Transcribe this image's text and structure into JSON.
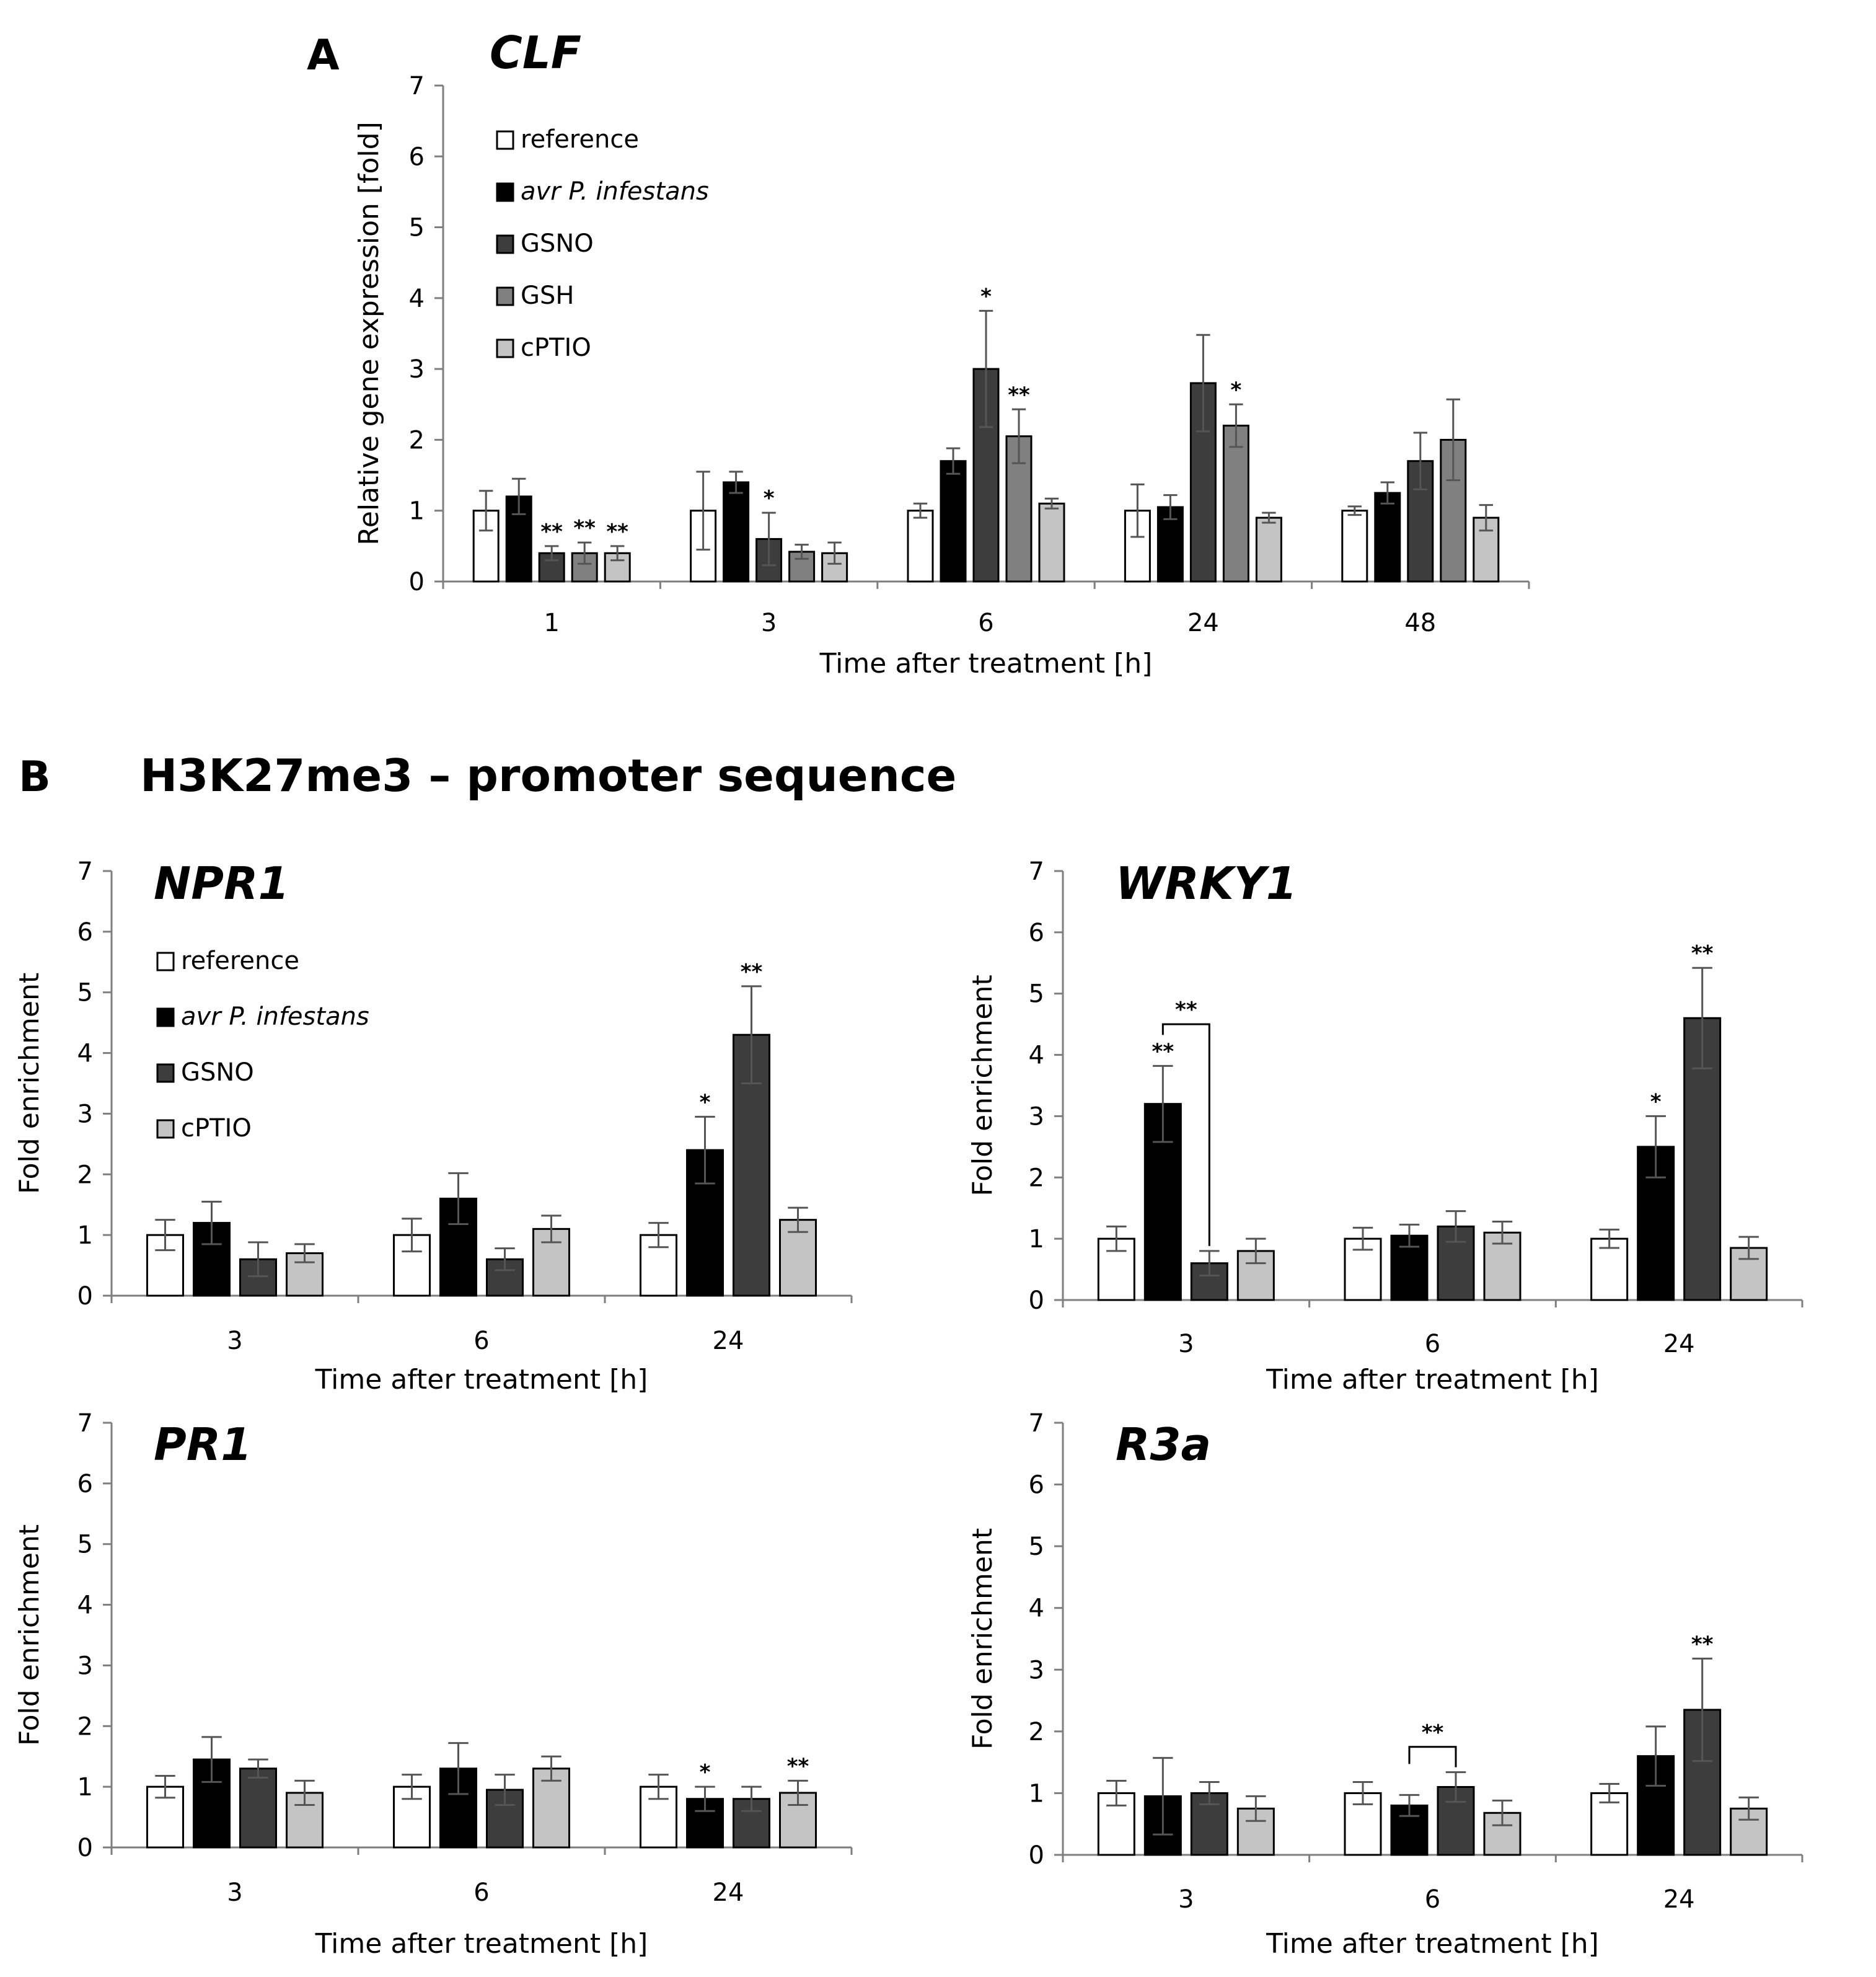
{
  "figure": {
    "panel_a_letter": "A",
    "panel_b_letter": "B",
    "panel_b_title": "H3K27me3 – promoter sequence"
  },
  "series_colors": {
    "reference": "#ffffff",
    "avr": "#000000",
    "GSNO": "#3d3d3d",
    "GSH": "#808080",
    "cPTIO": "#c4c4c4"
  },
  "chart_data": [
    {
      "id": "A",
      "type": "bar",
      "title": "CLF",
      "xlabel": "Time after treatment [h]",
      "ylabel": "Relative gene expression [fold]",
      "ylim": [
        0,
        7
      ],
      "yticks": [
        "0",
        "1",
        "2",
        "3",
        "4",
        "5",
        "6",
        "7"
      ],
      "categories": [
        "1",
        "3",
        "6",
        "24",
        "48"
      ],
      "series": [
        {
          "name": "reference",
          "color": "#ffffff",
          "values": [
            1.0,
            1.0,
            1.0,
            1.0,
            1.0
          ],
          "errors": [
            0.28,
            0.55,
            0.1,
            0.37,
            0.06
          ]
        },
        {
          "name": "avr P. infestans",
          "italic": true,
          "color": "#000000",
          "values": [
            1.2,
            1.4,
            1.7,
            1.05,
            1.25
          ],
          "errors": [
            0.25,
            0.15,
            0.18,
            0.17,
            0.15
          ]
        },
        {
          "name": "GSNO",
          "color": "#3d3d3d",
          "values": [
            0.4,
            0.6,
            3.0,
            2.8,
            1.7
          ],
          "errors": [
            0.1,
            0.37,
            0.82,
            0.68,
            0.4
          ]
        },
        {
          "name": "GSH",
          "color": "#808080",
          "values": [
            0.4,
            0.42,
            2.05,
            2.2,
            2.0
          ],
          "errors": [
            0.15,
            0.1,
            0.38,
            0.3,
            0.57
          ]
        },
        {
          "name": "cPTIO",
          "color": "#c4c4c4",
          "values": [
            0.4,
            0.4,
            1.1,
            0.9,
            0.9
          ],
          "errors": [
            0.1,
            0.15,
            0.07,
            0.07,
            0.18
          ]
        }
      ],
      "significance": [
        {
          "category": 0,
          "series": 2,
          "text": "**"
        },
        {
          "category": 0,
          "series": 3,
          "text": "**"
        },
        {
          "category": 0,
          "series": 4,
          "text": "**"
        },
        {
          "category": 1,
          "series": 2,
          "text": "*"
        },
        {
          "category": 2,
          "series": 2,
          "text": "*"
        },
        {
          "category": 2,
          "series": 3,
          "text": "**"
        },
        {
          "category": 3,
          "series": 3,
          "text": "*"
        }
      ],
      "brackets": [],
      "legend": "top-left"
    },
    {
      "id": "B-NPR1",
      "type": "bar",
      "title": "NPR1",
      "xlabel": "Time after treatment [h]",
      "ylabel": "Fold enrichment",
      "ylim": [
        0,
        7
      ],
      "yticks": [
        "0",
        "1",
        "2",
        "3",
        "4",
        "5",
        "6",
        "7"
      ],
      "categories": [
        "3",
        "6",
        "24"
      ],
      "series": [
        {
          "name": "reference",
          "color": "#ffffff",
          "values": [
            1.0,
            1.0,
            1.0
          ],
          "errors": [
            0.25,
            0.27,
            0.2
          ]
        },
        {
          "name": "avr P. infestans",
          "italic": true,
          "color": "#000000",
          "values": [
            1.2,
            1.6,
            2.4
          ],
          "errors": [
            0.35,
            0.42,
            0.55
          ]
        },
        {
          "name": "GSNO",
          "color": "#3d3d3d",
          "values": [
            0.6,
            0.6,
            4.3
          ],
          "errors": [
            0.28,
            0.18,
            0.8
          ]
        },
        {
          "name": "cPTIO",
          "color": "#c4c4c4",
          "values": [
            0.7,
            1.1,
            1.25
          ],
          "errors": [
            0.15,
            0.22,
            0.2
          ]
        }
      ],
      "significance": [
        {
          "category": 2,
          "series": 1,
          "text": "*"
        },
        {
          "category": 2,
          "series": 2,
          "text": "**"
        }
      ],
      "brackets": [],
      "legend": "top-left"
    },
    {
      "id": "B-WRKY1",
      "type": "bar",
      "title": "WRKY1",
      "xlabel": "Time after treatment [h]",
      "ylabel": "Fold enrichment",
      "ylim": [
        0,
        7
      ],
      "yticks": [
        "0",
        "1",
        "2",
        "3",
        "4",
        "5",
        "6",
        "7"
      ],
      "categories": [
        "3",
        "6",
        "24"
      ],
      "series": [
        {
          "name": "reference",
          "color": "#ffffff",
          "values": [
            1.0,
            1.0,
            1.0
          ],
          "errors": [
            0.2,
            0.18,
            0.15
          ]
        },
        {
          "name": "avr P. infestans",
          "italic": true,
          "color": "#000000",
          "values": [
            3.2,
            1.05,
            2.5
          ],
          "errors": [
            0.62,
            0.18,
            0.5
          ]
        },
        {
          "name": "GSNO",
          "color": "#3d3d3d",
          "values": [
            0.6,
            1.2,
            4.6
          ],
          "errors": [
            0.2,
            0.25,
            0.82
          ]
        },
        {
          "name": "cPTIO",
          "color": "#c4c4c4",
          "values": [
            0.8,
            1.1,
            0.85
          ],
          "errors": [
            0.2,
            0.18,
            0.18
          ]
        }
      ],
      "significance": [
        {
          "category": 0,
          "series": 1,
          "text": "**"
        },
        {
          "category": 2,
          "series": 1,
          "text": "*"
        },
        {
          "category": 2,
          "series": 2,
          "text": "**"
        }
      ],
      "brackets": [
        {
          "category": 0,
          "from": 1,
          "to": 2,
          "level": 4.5,
          "text": "**"
        }
      ]
    },
    {
      "id": "B-PR1",
      "type": "bar",
      "title": "PR1",
      "xlabel": "Time after treatment [h]",
      "ylabel": "Fold enrichment",
      "ylim": [
        0,
        7
      ],
      "yticks": [
        "0",
        "1",
        "2",
        "3",
        "4",
        "5",
        "6",
        "7"
      ],
      "categories": [
        "3",
        "6",
        "24"
      ],
      "series": [
        {
          "name": "reference",
          "color": "#ffffff",
          "values": [
            1.0,
            1.0,
            1.0
          ],
          "errors": [
            0.18,
            0.2,
            0.2
          ]
        },
        {
          "name": "avr P. infestans",
          "italic": true,
          "color": "#000000",
          "values": [
            1.45,
            1.3,
            0.8
          ],
          "errors": [
            0.37,
            0.42,
            0.2
          ]
        },
        {
          "name": "GSNO",
          "color": "#3d3d3d",
          "values": [
            1.3,
            0.95,
            0.8
          ],
          "errors": [
            0.15,
            0.25,
            0.2
          ]
        },
        {
          "name": "cPTIO",
          "color": "#c4c4c4",
          "values": [
            0.9,
            1.3,
            0.9
          ],
          "errors": [
            0.2,
            0.2,
            0.2
          ]
        }
      ],
      "significance": [
        {
          "category": 2,
          "series": 1,
          "text": "*"
        },
        {
          "category": 2,
          "series": 3,
          "text": "**"
        }
      ],
      "brackets": []
    },
    {
      "id": "B-R3a",
      "type": "bar",
      "title": "R3a",
      "xlabel": "Time after treatment [h]",
      "ylabel": "Fold enrichment",
      "ylim": [
        0,
        7
      ],
      "yticks": [
        "0",
        "1",
        "2",
        "3",
        "4",
        "5",
        "6",
        "7"
      ],
      "categories": [
        "3",
        "6",
        "24"
      ],
      "series": [
        {
          "name": "reference",
          "color": "#ffffff",
          "values": [
            1.0,
            1.0,
            1.0
          ],
          "errors": [
            0.2,
            0.18,
            0.15
          ]
        },
        {
          "name": "avr P. infestans",
          "italic": true,
          "color": "#000000",
          "values": [
            0.95,
            0.8,
            1.6
          ],
          "errors": [
            0.62,
            0.17,
            0.48
          ]
        },
        {
          "name": "GSNO",
          "color": "#3d3d3d",
          "values": [
            1.0,
            1.1,
            2.35
          ],
          "errors": [
            0.18,
            0.24,
            0.83
          ]
        },
        {
          "name": "cPTIO",
          "color": "#c4c4c4",
          "values": [
            0.75,
            0.68,
            0.75
          ],
          "errors": [
            0.2,
            0.2,
            0.18
          ]
        }
      ],
      "significance": [
        {
          "category": 2,
          "series": 2,
          "text": "**"
        }
      ],
      "brackets": [
        {
          "category": 1,
          "from": 1,
          "to": 2,
          "level": 1.75,
          "text": "**"
        }
      ]
    }
  ]
}
